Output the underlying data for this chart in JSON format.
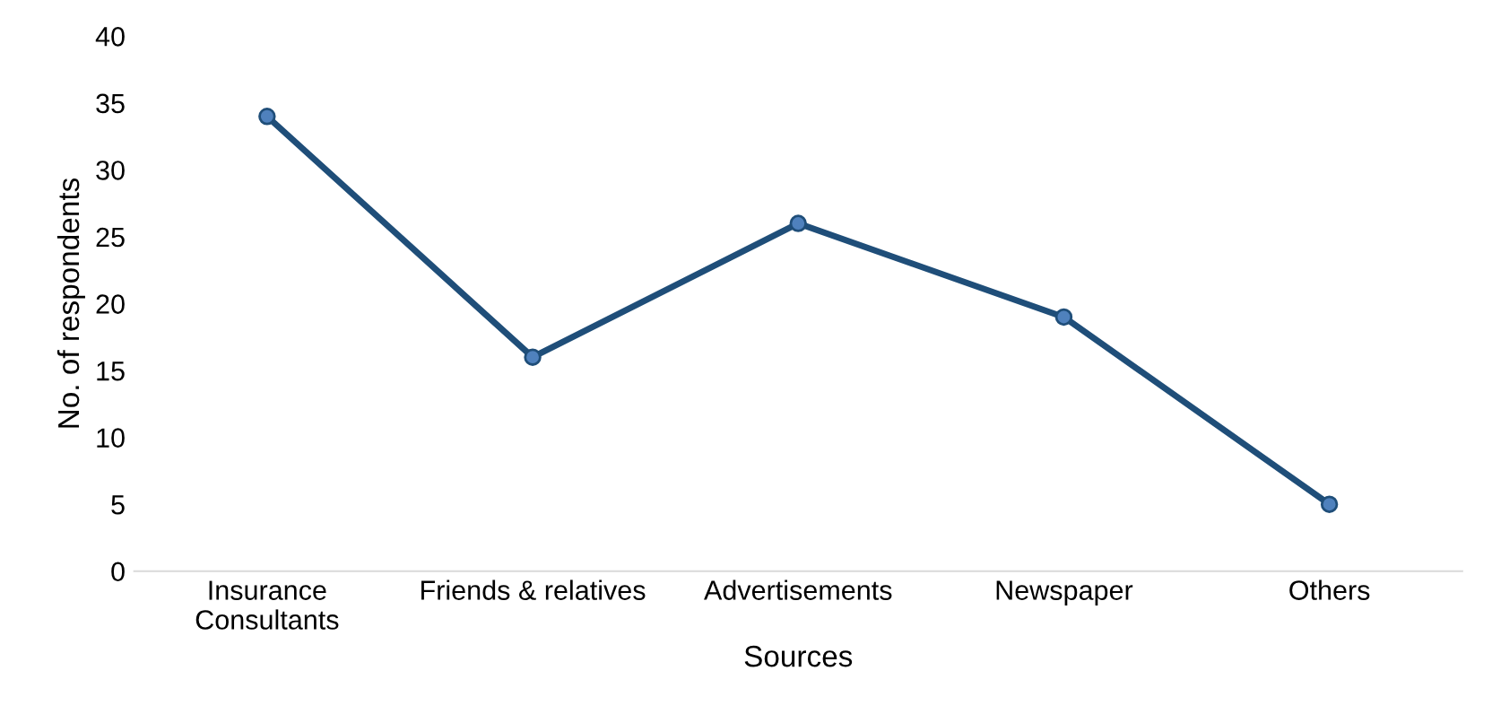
{
  "chart_data": {
    "type": "line",
    "xlabel": "Sources",
    "ylabel": "No. of respondents",
    "categories": [
      "Insurance\nConsultants",
      "Friends & relatives",
      "Advertisements",
      "Newspaper",
      "Others"
    ],
    "series": [
      {
        "color": "#1f4e79",
        "values": [
          34,
          16,
          26,
          19,
          5
        ]
      }
    ],
    "ylim": [
      0,
      40
    ],
    "yticks": [
      0,
      5,
      10,
      15,
      20,
      25,
      30,
      35,
      40
    ],
    "grid": false,
    "marker": "circle",
    "line_style": "solid",
    "legend": false
  }
}
